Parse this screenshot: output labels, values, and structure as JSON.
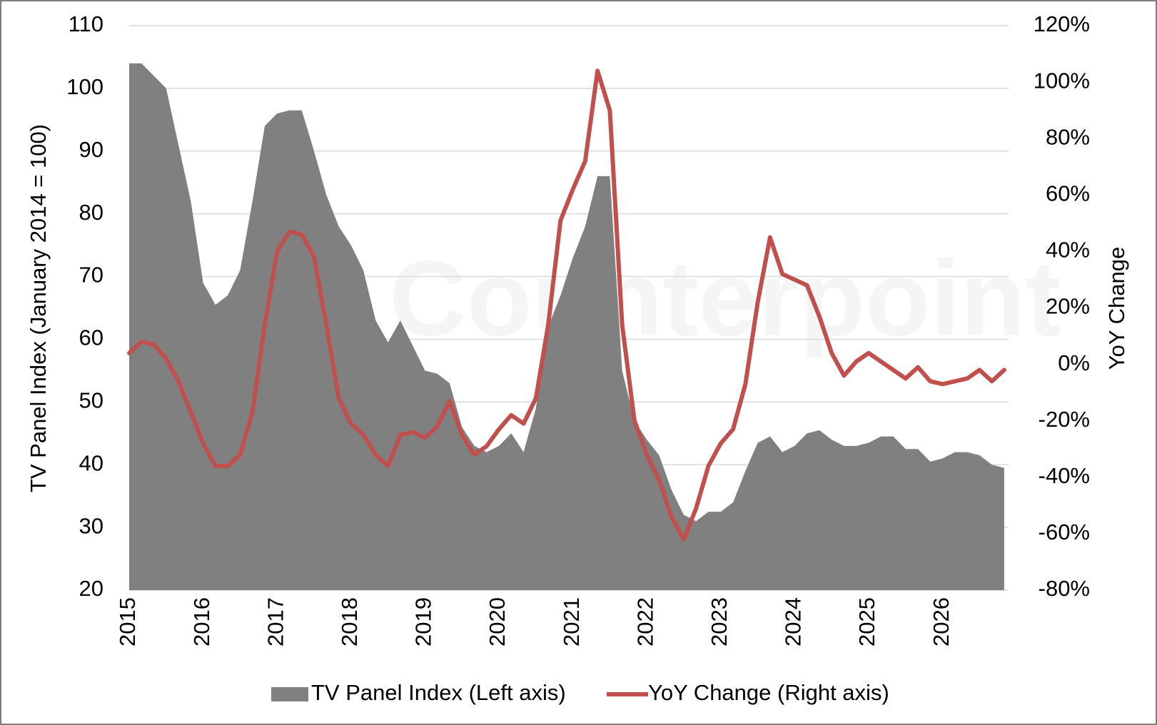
{
  "chart_data": {
    "type": "combo",
    "watermark": "© Counterpoint",
    "y_label": "TV Panel Index (January 2014 = 100)",
    "y2_label": "YoY Change",
    "categories": [
      "2015",
      null,
      null,
      null,
      null,
      null,
      "2016",
      null,
      null,
      null,
      null,
      null,
      "2017",
      null,
      null,
      null,
      null,
      null,
      "2018",
      null,
      null,
      null,
      null,
      null,
      "2019",
      null,
      null,
      null,
      null,
      null,
      "2020",
      null,
      null,
      null,
      null,
      null,
      "2021",
      null,
      null,
      null,
      null,
      null,
      "2022",
      null,
      null,
      null,
      null,
      null,
      "2023",
      null,
      null,
      null,
      null,
      null,
      "2024",
      null,
      null,
      null,
      null,
      null,
      "2025",
      null,
      null,
      null,
      null,
      null,
      "2026",
      null,
      null,
      null,
      null,
      null
    ],
    "series": [
      {
        "name": "TV Panel Index (Left axis)",
        "type": "area",
        "color": "#808080",
        "axis": "y",
        "values": [
          104,
          104,
          102,
          100,
          91,
          82,
          69,
          65.5,
          67,
          71,
          82,
          94,
          96,
          96.5,
          96.5,
          90,
          83,
          78,
          75,
          71,
          63,
          59.5,
          63,
          59,
          55,
          54.5,
          53,
          46,
          43,
          42,
          43,
          45,
          42,
          49,
          62,
          67,
          73,
          78,
          86,
          86,
          55,
          47,
          44,
          41.5,
          36,
          32,
          31,
          32.5,
          32.5,
          34,
          39,
          43.5,
          44.5,
          42,
          43,
          45,
          45.5,
          44,
          43,
          43,
          43.5,
          44.5,
          44.5,
          42.5,
          42.5,
          40.5,
          41,
          42,
          42,
          41.5,
          40,
          39.5
        ]
      },
      {
        "name": "YoY Change (Right axis)",
        "type": "line",
        "color": "#c0504d",
        "axis": "y2",
        "values": [
          4,
          8,
          7,
          2,
          -6,
          -17,
          -28,
          -36,
          -36,
          -32,
          -17,
          14,
          40,
          47,
          46,
          38,
          14,
          -12,
          -21,
          -25,
          -32,
          -36,
          -25,
          -24,
          -26,
          -22,
          -13,
          -25,
          -32,
          -29,
          -23,
          -18,
          -21,
          -12,
          14,
          51,
          62,
          72,
          104,
          90,
          14,
          -20,
          -32,
          -41,
          -54,
          -62,
          -51,
          -36,
          -28,
          -23,
          -7,
          22,
          45,
          32,
          30,
          28,
          17,
          4,
          -4,
          1,
          4,
          1,
          -2,
          -5,
          -1,
          -6,
          -7,
          -6,
          -5,
          -2,
          -6,
          -2
        ]
      }
    ],
    "ylim": [
      20,
      110
    ],
    "yticks": [
      20,
      30,
      40,
      50,
      60,
      70,
      80,
      90,
      100,
      110
    ],
    "y2lim": [
      -80,
      120
    ],
    "y2ticks": [
      {
        "value": -80,
        "label": "-80%"
      },
      {
        "value": -60,
        "label": "-60%"
      },
      {
        "value": -40,
        "label": "-40%"
      },
      {
        "value": -20,
        "label": "-20%"
      },
      {
        "value": 0,
        "label": "0%"
      },
      {
        "value": 20,
        "label": "20%"
      },
      {
        "value": 40,
        "label": "40%"
      },
      {
        "value": 60,
        "label": "60%"
      },
      {
        "value": 80,
        "label": "80%"
      },
      {
        "value": 100,
        "label": "100%"
      },
      {
        "value": 120,
        "label": "120%"
      }
    ],
    "grid": true
  }
}
